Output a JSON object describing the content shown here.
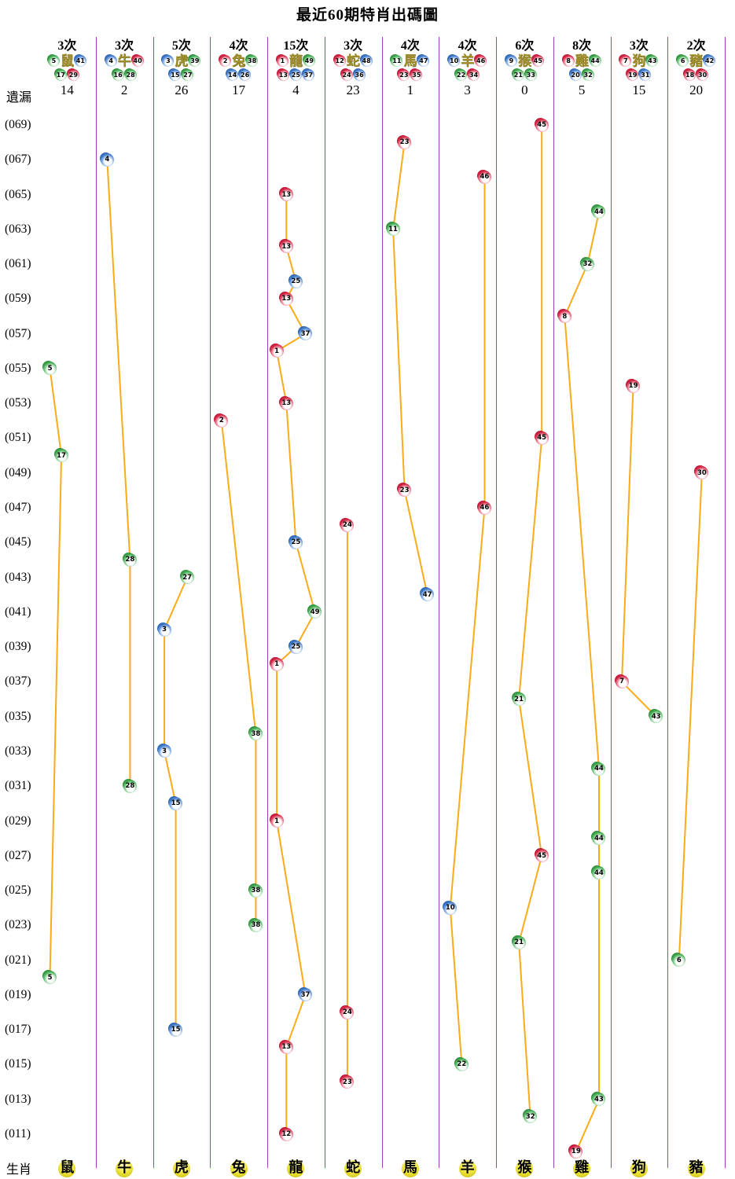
{
  "title": "最近60期特肖出碼圖",
  "labels": {
    "missed": "遺漏",
    "zodiac_row": "生肖"
  },
  "colors": {
    "separator": "#9a44b8",
    "trend_line": "#fbab18",
    "ball_red": "#c81430",
    "ball_blue": "#2e6bbf",
    "ball_green": "#2e9b3c",
    "header_zodiac_text": "#a08f2c",
    "footer_ball": "#f2e845"
  },
  "number_colors": {
    "red": [
      1,
      2,
      7,
      8,
      12,
      13,
      18,
      19,
      23,
      24,
      29,
      30,
      34,
      35,
      40,
      45,
      46
    ],
    "blue": [
      3,
      4,
      9,
      10,
      14,
      15,
      20,
      25,
      26,
      31,
      36,
      37,
      41,
      42,
      47,
      48
    ],
    "green": [
      5,
      6,
      11,
      16,
      17,
      21,
      22,
      27,
      28,
      32,
      33,
      38,
      39,
      43,
      44,
      49
    ]
  },
  "chart_data": {
    "type": "scatter",
    "title": "最近60期特肖出碼圖",
    "y_axis_labels": [
      "(069)",
      "(067)",
      "(065)",
      "(063)",
      "(061)",
      "(059)",
      "(057)",
      "(055)",
      "(053)",
      "(051)",
      "(049)",
      "(047)",
      "(045)",
      "(043)",
      "(041)",
      "(039)",
      "(037)",
      "(035)",
      "(033)",
      "(031)",
      "(029)",
      "(027)",
      "(025)",
      "(023)",
      "(021)",
      "(019)",
      "(017)",
      "(015)",
      "(013)",
      "(011)"
    ],
    "period_range": [
      10,
      69
    ],
    "legend_position": "none",
    "grid": "column-separators-only",
    "columns": [
      {
        "zodiac": "鼠",
        "count": "3次",
        "missed": "14",
        "numbers": [
          5,
          17,
          29,
          41
        ],
        "points": [
          {
            "p": 55,
            "n": 5,
            "s": 0
          },
          {
            "p": 50,
            "n": 17,
            "s": 1
          },
          {
            "p": 20,
            "n": 5,
            "s": 0
          }
        ]
      },
      {
        "zodiac": "牛",
        "count": "3次",
        "missed": "2",
        "numbers": [
          4,
          16,
          28,
          40
        ],
        "points": [
          {
            "p": 67,
            "n": 4,
            "s": 0
          },
          {
            "p": 44,
            "n": 28,
            "s": 2
          },
          {
            "p": 31,
            "n": 28,
            "s": 2
          }
        ]
      },
      {
        "zodiac": "虎",
        "count": "5次",
        "missed": "26",
        "numbers": [
          3,
          15,
          27,
          39
        ],
        "points": [
          {
            "p": 43,
            "n": 27,
            "s": 2
          },
          {
            "p": 40,
            "n": 3,
            "s": 0
          },
          {
            "p": 33,
            "n": 3,
            "s": 0
          },
          {
            "p": 30,
            "n": 15,
            "s": 1
          },
          {
            "p": 17,
            "n": 15,
            "s": 1
          }
        ]
      },
      {
        "zodiac": "兔",
        "count": "4次",
        "missed": "17",
        "numbers": [
          2,
          14,
          26,
          38
        ],
        "points": [
          {
            "p": 52,
            "n": 2,
            "s": 0
          },
          {
            "p": 34,
            "n": 38,
            "s": 3
          },
          {
            "p": 25,
            "n": 38,
            "s": 3
          },
          {
            "p": 23,
            "n": 38,
            "s": 3
          }
        ]
      },
      {
        "zodiac": "龍",
        "count": "15次",
        "missed": "4",
        "numbers": [
          1,
          13,
          25,
          37,
          49
        ],
        "points": [
          {
            "p": 65,
            "n": 13,
            "s": 1
          },
          {
            "p": 62,
            "n": 13,
            "s": 1
          },
          {
            "p": 60,
            "n": 25,
            "s": 2
          },
          {
            "p": 59,
            "n": 13,
            "s": 1
          },
          {
            "p": 57,
            "n": 37,
            "s": 3
          },
          {
            "p": 56,
            "n": 1,
            "s": 0
          },
          {
            "p": 53,
            "n": 13,
            "s": 1
          },
          {
            "p": 45,
            "n": 25,
            "s": 2
          },
          {
            "p": 41,
            "n": 49,
            "s": 4
          },
          {
            "p": 39,
            "n": 25,
            "s": 2
          },
          {
            "p": 38,
            "n": 1,
            "s": 0
          },
          {
            "p": 29,
            "n": 1,
            "s": 0
          },
          {
            "p": 19,
            "n": 37,
            "s": 3
          },
          {
            "p": 16,
            "n": 13,
            "s": 1
          },
          {
            "p": 11,
            "n": 12,
            "s": 1
          }
        ]
      },
      {
        "zodiac": "蛇",
        "count": "3次",
        "missed": "23",
        "numbers": [
          12,
          24,
          36,
          48
        ],
        "points": [
          {
            "p": 46,
            "n": 24,
            "s": 1
          },
          {
            "p": 18,
            "n": 24,
            "s": 1
          },
          {
            "p": 14,
            "n": 23,
            "s": 1
          }
        ]
      },
      {
        "zodiac": "馬",
        "count": "4次",
        "missed": "1",
        "numbers": [
          11,
          23,
          35,
          47
        ],
        "points": [
          {
            "p": 68,
            "n": 23,
            "s": 1
          },
          {
            "p": 63,
            "n": 11,
            "s": 0
          },
          {
            "p": 48,
            "n": 23,
            "s": 1
          },
          {
            "p": 42,
            "n": 47,
            "s": 3
          }
        ]
      },
      {
        "zodiac": "羊",
        "count": "4次",
        "missed": "3",
        "numbers": [
          10,
          22,
          34,
          46
        ],
        "points": [
          {
            "p": 66,
            "n": 46,
            "s": 3
          },
          {
            "p": 47,
            "n": 46,
            "s": 3
          },
          {
            "p": 24,
            "n": 10,
            "s": 0
          },
          {
            "p": 15,
            "n": 22,
            "s": 1
          }
        ]
      },
      {
        "zodiac": "猴",
        "count": "6次",
        "missed": "0",
        "numbers": [
          9,
          21,
          33,
          45
        ],
        "points": [
          {
            "p": 69,
            "n": 45,
            "s": 3
          },
          {
            "p": 51,
            "n": 45,
            "s": 3
          },
          {
            "p": 36,
            "n": 21,
            "s": 1
          },
          {
            "p": 27,
            "n": 45,
            "s": 3
          },
          {
            "p": 22,
            "n": 21,
            "s": 1
          },
          {
            "p": 12,
            "n": 32,
            "s": 2
          }
        ]
      },
      {
        "zodiac": "雞",
        "count": "8次",
        "missed": "5",
        "numbers": [
          8,
          20,
          32,
          44
        ],
        "points": [
          {
            "p": 64,
            "n": 44,
            "s": 3
          },
          {
            "p": 61,
            "n": 32,
            "s": 2
          },
          {
            "p": 58,
            "n": 8,
            "s": 0
          },
          {
            "p": 32,
            "n": 44,
            "s": 3
          },
          {
            "p": 28,
            "n": 44,
            "s": 3
          },
          {
            "p": 26,
            "n": 44,
            "s": 3
          },
          {
            "p": 13,
            "n": 43,
            "s": 3
          },
          {
            "p": 10,
            "n": 19,
            "s": 1
          }
        ]
      },
      {
        "zodiac": "狗",
        "count": "3次",
        "missed": "15",
        "numbers": [
          7,
          19,
          31,
          43
        ],
        "points": [
          {
            "p": 54,
            "n": 19,
            "s": 1
          },
          {
            "p": 37,
            "n": 7,
            "s": 0
          },
          {
            "p": 35,
            "n": 43,
            "s": 3
          }
        ]
      },
      {
        "zodiac": "豬",
        "count": "2次",
        "missed": "20",
        "numbers": [
          6,
          18,
          30,
          42
        ],
        "points": [
          {
            "p": 49,
            "n": 30,
            "s": 2
          },
          {
            "p": 21,
            "n": 6,
            "s": 0
          }
        ]
      }
    ]
  }
}
